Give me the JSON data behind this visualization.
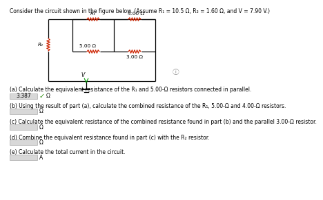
{
  "title": "Consider the circuit shown in the figure below. (Assume R₁ = 10.5 Ω, R₂ = 1.60 Ω, and V = 7.90 V.)",
  "title_color": "#000000",
  "background_color": "#ffffff",
  "r1_label": "R₁",
  "r2_label": "R₂",
  "res1": "5.00 Ω",
  "res2": "4.00 Ω",
  "res3": "3.00 Ω",
  "part_a_text": "(a) Calculate the equivalent resistance of the R₁ and 5.00-Ω resistors connected in parallel.",
  "part_a_answer": "3.387",
  "part_a_unit": "Ω",
  "part_b_text": "(b) Using the result of part (a), calculate the combined resistance of the R₁, 5.00-Ω and 4.00-Ω resistors.",
  "part_b_unit": "Ω",
  "part_c_text": "(c) Calculate the equivalent resistance of the combined resistance found in part (b) and the parallel 3.00-Ω resistor.",
  "part_c_unit": "Ω",
  "part_d_text": "(d) Combine the equivalent resistance found in part (c) with the R₂ resistor.",
  "part_d_unit": "Ω",
  "part_e_text": "(e) Calculate the total current in the circuit.",
  "part_e_unit": "A",
  "wire_color": "#000000",
  "resistor_color": "#cc2200",
  "font_size_title": 5.5,
  "font_size_body": 5.5,
  "font_size_label": 5.2,
  "box_facecolor": "#d8d8d8",
  "check_color": "#228800",
  "info_color": "#888888"
}
